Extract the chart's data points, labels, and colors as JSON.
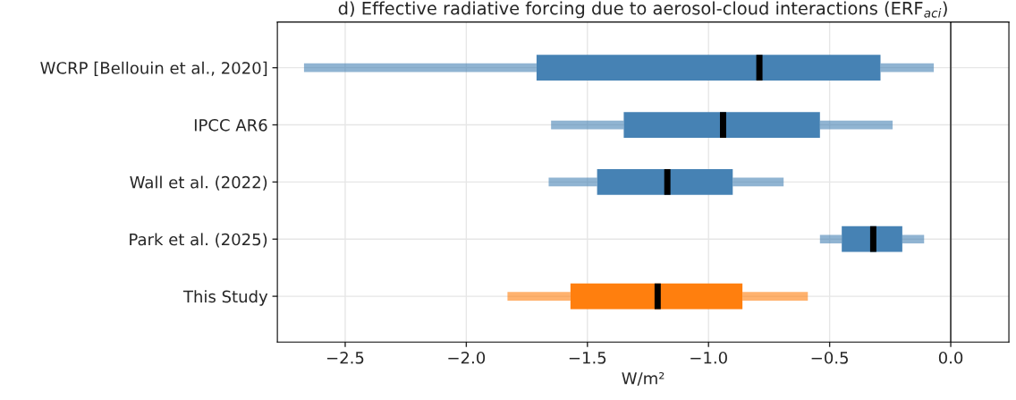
{
  "chart_data": {
    "type": "box",
    "orientation": "horizontal",
    "title": "d) Effective radiative forcing due to aerosol-cloud interactions (ERF$_{aci}$)",
    "xlabel": "W/m²",
    "categories": [
      "WCRP [Bellouin et al., 2020]",
      "IPCC AR6",
      "Wall et al. (2022)",
      "Park et al. (2025)",
      "This Study"
    ],
    "boxes": [
      {
        "low": -2.67,
        "q1": -1.71,
        "median": -0.79,
        "q3": -0.29,
        "high": -0.07
      },
      {
        "low": -1.65,
        "q1": -1.35,
        "median": -0.94,
        "q3": -0.54,
        "high": -0.24
      },
      {
        "low": -1.66,
        "q1": -1.46,
        "median": -1.17,
        "q3": -0.9,
        "high": -0.69
      },
      {
        "low": -0.54,
        "q1": -0.45,
        "median": -0.32,
        "q3": -0.2,
        "high": -0.11
      },
      {
        "low": -1.83,
        "q1": -1.57,
        "median": -1.21,
        "q3": -0.86,
        "high": -0.59
      }
    ],
    "colors": [
      "#4682b4",
      "#4682b4",
      "#4682b4",
      "#4682b4",
      "#ff7f0e"
    ],
    "xlim": [
      -2.78,
      0.24
    ],
    "xticks": [
      {
        "value": -2.5,
        "label": "−2.5"
      },
      {
        "value": -2.0,
        "label": "−2.0"
      },
      {
        "value": -1.5,
        "label": "−1.5"
      },
      {
        "value": -1.0,
        "label": "−1.0"
      },
      {
        "value": -0.5,
        "label": "−0.5"
      },
      {
        "value": 0,
        "label": "0.0"
      }
    ],
    "ref_lines": [
      {
        "axis": "x",
        "value": 0,
        "color": "#555555"
      }
    ],
    "grid": true
  }
}
